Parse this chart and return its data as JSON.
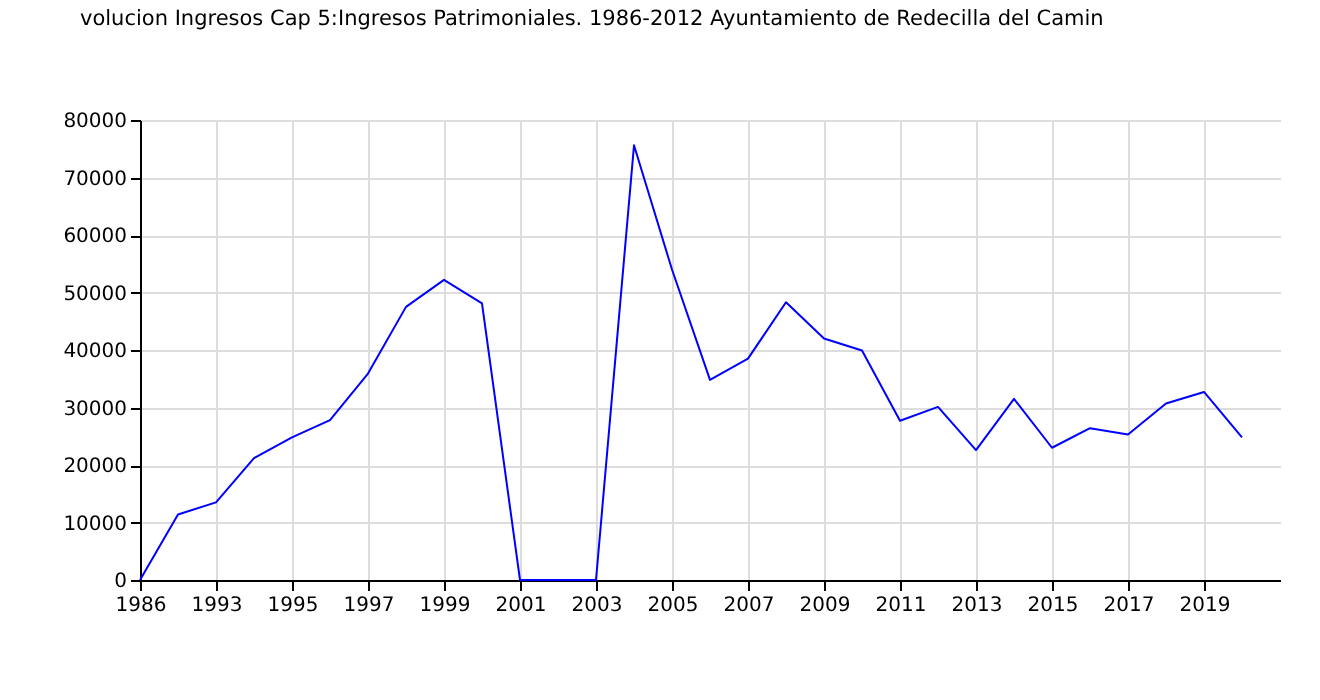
{
  "chart_data": {
    "type": "line",
    "title": "volucion Ingresos Cap 5:Ingresos Patrimoniales. 1986-2012 Ayuntamiento de Redecilla del Camin",
    "categories": [
      "1986",
      null,
      "1993",
      null,
      "1995",
      null,
      "1997",
      null,
      "1999",
      null,
      "2001",
      null,
      "2003",
      null,
      "2005",
      null,
      "2007",
      null,
      "2009",
      null,
      "2011",
      null,
      "2013",
      null,
      "2015",
      null,
      "2017",
      null,
      "2019",
      null
    ],
    "series": [
      {
        "color": "#0000ff",
        "values": [
          0,
          11400,
          13500,
          21200,
          24800,
          27800,
          35900,
          47500,
          52200,
          48100,
          0,
          0,
          0,
          75600,
          54000,
          34800,
          38500,
          48300,
          42000,
          39900,
          27700,
          30100,
          22600,
          31500,
          23000,
          26400,
          25300,
          30700,
          32700,
          24800
        ]
      }
    ],
    "ylim": [
      0,
      80000
    ],
    "yticks": [
      0,
      10000,
      20000,
      30000,
      40000,
      50000,
      60000,
      70000,
      80000
    ],
    "grid": true
  }
}
